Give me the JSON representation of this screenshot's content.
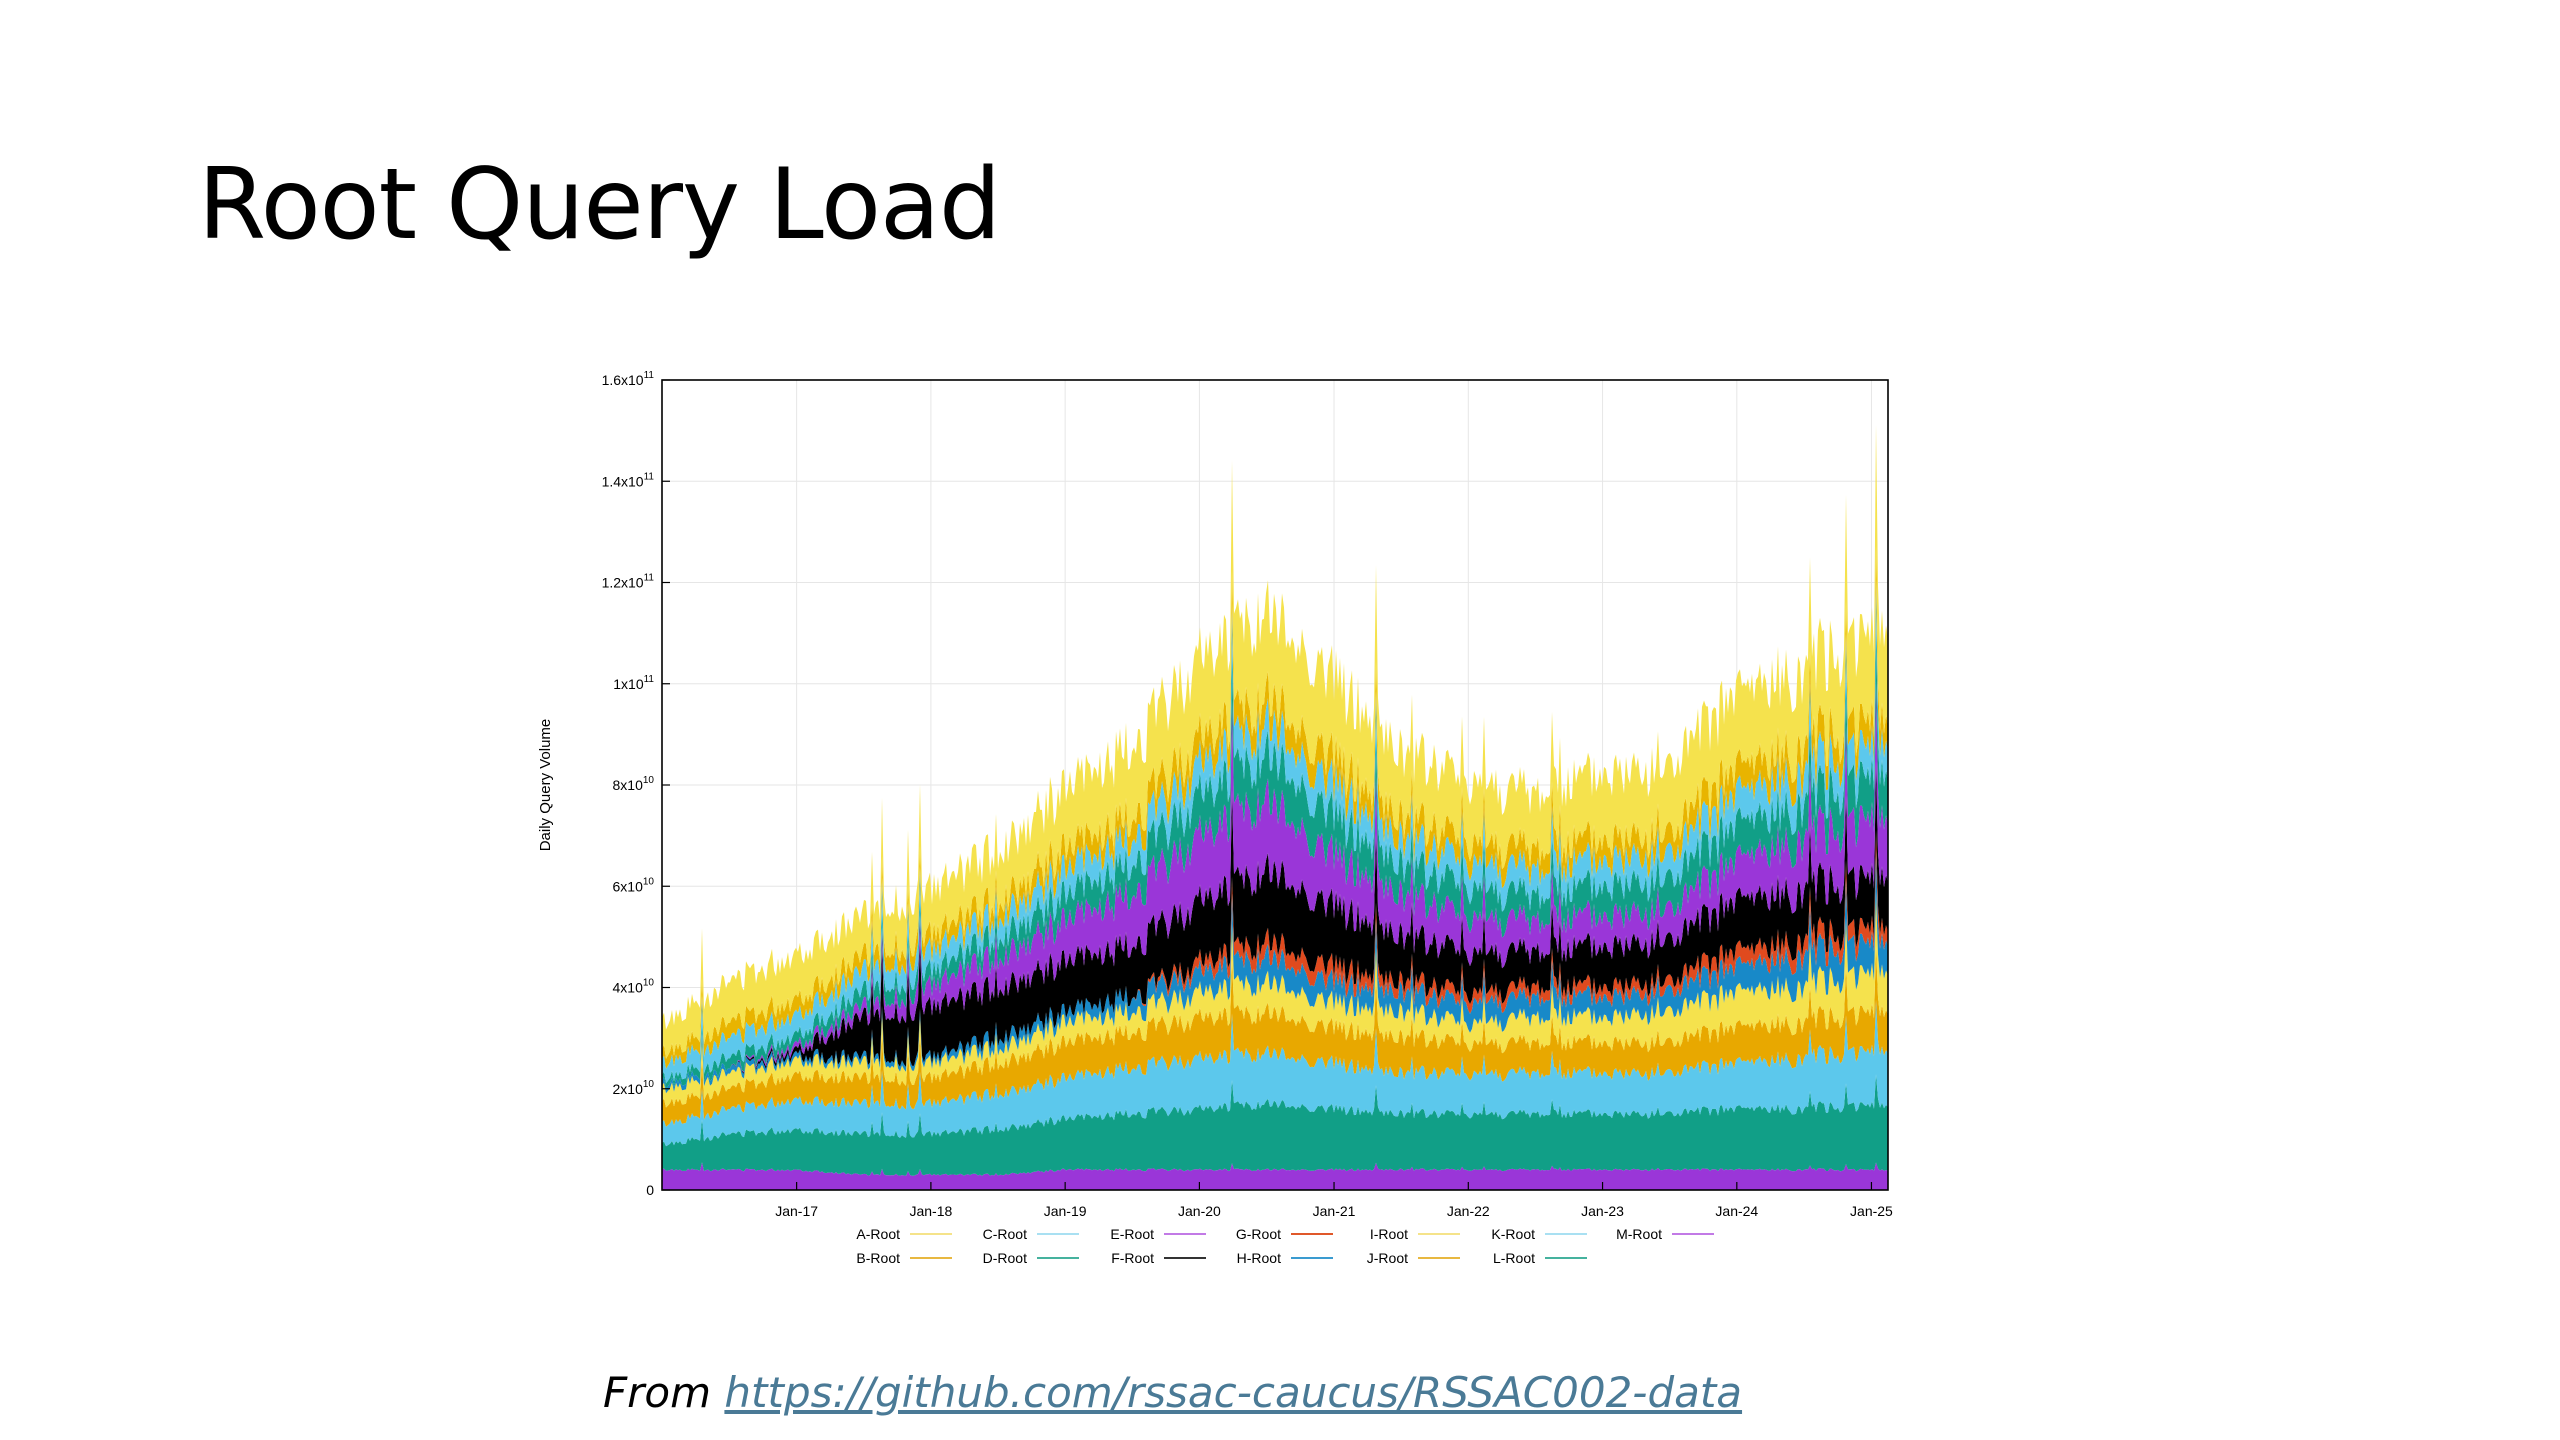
{
  "slide": {
    "title": "Root Query Load",
    "source_prefix": "From",
    "source_url": "https://github.com/rssac-caucus/RSSAC002-data"
  },
  "chart_data": {
    "type": "area",
    "stacked": true,
    "title": "",
    "xlabel": "",
    "ylabel": "Daily Query Volume",
    "x_ticks": [
      "Jan-17",
      "Jan-18",
      "Jan-19",
      "Jan-20",
      "Jan-21",
      "Jan-22",
      "Jan-23",
      "Jan-24",
      "Jan-25"
    ],
    "x_range": [
      "2016-01-01",
      "2025-02-15"
    ],
    "ylim": [
      0,
      160000000000
    ],
    "y_ticks": [
      {
        "value": 0,
        "mantissa": "0",
        "exp": ""
      },
      {
        "value": 20000000000,
        "mantissa": "2x10",
        "exp": "10"
      },
      {
        "value": 40000000000,
        "mantissa": "4x10",
        "exp": "10"
      },
      {
        "value": 60000000000,
        "mantissa": "6x10",
        "exp": "10"
      },
      {
        "value": 80000000000,
        "mantissa": "8x10",
        "exp": "10"
      },
      {
        "value": 100000000000,
        "mantissa": "1x10",
        "exp": "11"
      },
      {
        "value": 120000000000,
        "mantissa": "1.2x10",
        "exp": "11"
      },
      {
        "value": 140000000000,
        "mantissa": "1.4x10",
        "exp": "11"
      },
      {
        "value": 160000000000,
        "mantissa": "1.6x10",
        "exp": "11"
      }
    ],
    "grid": true,
    "legend_position": "bottom",
    "x_dates": [
      "2016-01-01",
      "2016-07-01",
      "2017-01-01",
      "2017-07-01",
      "2018-01-01",
      "2018-07-01",
      "2019-01-01",
      "2019-07-01",
      "2020-01-01",
      "2020-07-01",
      "2021-01-01",
      "2021-07-01",
      "2022-01-01",
      "2022-07-01",
      "2023-01-01",
      "2023-07-01",
      "2024-01-01",
      "2024-07-01",
      "2025-02-15"
    ],
    "layer_order_bottom_to_top": [
      "M-Root",
      "L-Root",
      "K-Root",
      "J-Root",
      "I-Root",
      "H-Root",
      "G-Root",
      "F-Root",
      "E-Root",
      "D-Root",
      "C-Root",
      "B-Root",
      "A-Root"
    ],
    "series": [
      {
        "name": "A-Root",
        "color": "#f5e24d",
        "values": [
          6,
          8,
          9,
          8,
          9,
          10,
          12,
          14,
          16,
          17,
          16,
          13,
          12,
          11,
          13,
          13,
          15,
          15,
          18
        ]
      },
      {
        "name": "B-Root",
        "color": "#e8b400",
        "values": [
          2,
          3,
          3,
          3,
          3,
          3,
          4,
          4,
          5,
          5,
          5,
          4,
          4,
          4,
          4,
          4,
          5,
          5,
          5
        ]
      },
      {
        "name": "C-Root",
        "color": "#5cc8ec",
        "values": [
          3,
          4,
          4,
          4,
          4,
          4,
          5,
          5,
          6,
          6,
          6,
          5,
          5,
          5,
          5,
          5,
          6,
          6,
          6
        ]
      },
      {
        "name": "D-Root",
        "color": "#119f87",
        "values": [
          1,
          2,
          2,
          3,
          3,
          4,
          5,
          6,
          8,
          9,
          8,
          6,
          6,
          5,
          6,
          6,
          7,
          7,
          9
        ]
      },
      {
        "name": "E-Root",
        "color": "#9a36d8",
        "values": [
          0,
          0,
          1,
          2,
          4,
          6,
          8,
          10,
          13,
          14,
          10,
          8,
          7,
          6,
          6,
          6,
          8,
          10,
          12
        ]
      },
      {
        "name": "F-Root",
        "color": "#000000",
        "values": [
          0,
          0,
          1,
          8,
          10,
          10,
          10,
          10,
          12,
          14,
          12,
          9,
          8,
          7,
          8,
          8,
          10,
          10,
          10
        ]
      },
      {
        "name": "G-Root",
        "color": "#e04a1e",
        "values": [
          0,
          0,
          0,
          0,
          0,
          0,
          0,
          0,
          2,
          3,
          3,
          2,
          2,
          2,
          2,
          2,
          3,
          3,
          3
        ]
      },
      {
        "name": "H-Root",
        "color": "#1889c8",
        "values": [
          1,
          1,
          1,
          1,
          1,
          2,
          2,
          3,
          4,
          5,
          4,
          4,
          4,
          4,
          4,
          4,
          5,
          6,
          6
        ]
      },
      {
        "name": "I-Root",
        "color": "#f5e24d",
        "values": [
          3,
          3,
          3,
          3,
          3,
          3,
          4,
          4,
          5,
          6,
          5,
          5,
          4,
          5,
          5,
          6,
          7,
          7,
          8
        ]
      },
      {
        "name": "J-Root",
        "color": "#e8a800",
        "values": [
          4,
          4,
          5,
          5,
          5,
          6,
          7,
          7,
          8,
          8,
          7,
          7,
          6,
          6,
          6,
          6,
          7,
          7,
          8
        ]
      },
      {
        "name": "K-Root",
        "color": "#5cc8ec",
        "values": [
          4,
          5,
          6,
          6,
          6,
          7,
          8,
          9,
          10,
          10,
          9,
          8,
          8,
          8,
          8,
          8,
          9,
          10,
          11
        ]
      },
      {
        "name": "L-Root",
        "color": "#119f87",
        "values": [
          5,
          7,
          8,
          8,
          8,
          9,
          10,
          11,
          12,
          13,
          12,
          11,
          11,
          11,
          11,
          11,
          12,
          12,
          13
        ]
      },
      {
        "name": "M-Root",
        "color": "#9a36d8",
        "values": [
          4,
          4,
          4,
          3,
          3,
          3,
          4,
          4,
          4,
          4,
          4,
          4,
          4,
          4,
          4,
          4,
          4,
          4,
          4
        ]
      }
    ],
    "value_unit_multiplier": 1000000000,
    "legend": [
      {
        "name": "A-Root",
        "color": "#f5e38a",
        "row": 0,
        "col": 0
      },
      {
        "name": "C-Root",
        "color": "#a9e0f2",
        "row": 0,
        "col": 1
      },
      {
        "name": "E-Root",
        "color": "#c27ae6",
        "row": 0,
        "col": 2
      },
      {
        "name": "G-Root",
        "color": "#e0582a",
        "row": 0,
        "col": 3
      },
      {
        "name": "I-Root",
        "color": "#f5e38a",
        "row": 0,
        "col": 4
      },
      {
        "name": "K-Root",
        "color": "#a9e0f2",
        "row": 0,
        "col": 5
      },
      {
        "name": "M-Root",
        "color": "#c27ae6",
        "row": 0,
        "col": 6
      },
      {
        "name": "B-Root",
        "color": "#e8b840",
        "row": 1,
        "col": 0
      },
      {
        "name": "D-Root",
        "color": "#45b29e",
        "row": 1,
        "col": 1
      },
      {
        "name": "F-Root",
        "color": "#333333",
        "row": 1,
        "col": 2
      },
      {
        "name": "H-Root",
        "color": "#3a9bd0",
        "row": 1,
        "col": 3
      },
      {
        "name": "J-Root",
        "color": "#e8b840",
        "row": 1,
        "col": 4
      },
      {
        "name": "L-Root",
        "color": "#45b29e",
        "row": 1,
        "col": 5
      }
    ]
  }
}
